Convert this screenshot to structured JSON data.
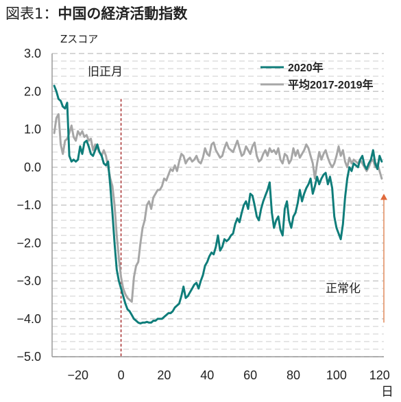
{
  "header": {
    "title_lead": "図表1：",
    "title_main": "中国の経済活動指数"
  },
  "chart_data": {
    "type": "line",
    "title": "図表1：中国の経済活動指数",
    "ylabel": "Zスコア",
    "xlabel": "日",
    "xlim": [
      -32,
      122
    ],
    "ylim": [
      -5.0,
      3.0
    ],
    "x_ticks": [
      -20,
      0,
      20,
      40,
      60,
      80,
      100,
      120
    ],
    "y_ticks": [
      3.0,
      2.0,
      1.0,
      0.0,
      -1.0,
      -2.0,
      -3.0,
      -4.0,
      -5.0
    ],
    "y_tick_labels": [
      "3.0",
      "2.0",
      "1.0",
      "0.0",
      "−1.0",
      "−2.0",
      "−3.0",
      "−4.0",
      "−5.0"
    ],
    "x_tick_labels": [
      "−20",
      "0",
      "20",
      "40",
      "60",
      "80",
      "100",
      "120"
    ],
    "grid": "horizontal-dashed",
    "legend_position": "top-right",
    "annotations": {
      "spring_festival": "旧正月",
      "normalization": "正常化"
    },
    "marker_x": 0,
    "arrow": {
      "x": 122,
      "y_from": -4.1,
      "y_to": -0.7
    },
    "series": [
      {
        "name": "2020年",
        "color": "#0f7d7a",
        "points": [
          [
            -31,
            2.15
          ],
          [
            -30,
            2.0
          ],
          [
            -29,
            1.8
          ],
          [
            -28,
            1.75
          ],
          [
            -27,
            1.6
          ],
          [
            -26,
            1.55
          ],
          [
            -25,
            1.7
          ],
          [
            -24,
            0.3
          ],
          [
            -23,
            0.15
          ],
          [
            -22,
            0.2
          ],
          [
            -21,
            0.15
          ],
          [
            -20,
            0.2
          ],
          [
            -19,
            0.55
          ],
          [
            -18,
            0.35
          ],
          [
            -17,
            0.65
          ],
          [
            -16,
            0.7
          ],
          [
            -15,
            0.55
          ],
          [
            -14,
            0.35
          ],
          [
            -13,
            0.3
          ],
          [
            -12,
            0.45
          ],
          [
            -11,
            0.6
          ],
          [
            -10,
            0.4
          ],
          [
            -9,
            0.3
          ],
          [
            -8,
            0.1
          ],
          [
            -7,
            0.05
          ],
          [
            -6,
            0.15
          ],
          [
            -5,
            -0.5
          ],
          [
            -4,
            -1.2
          ],
          [
            -3,
            -2.0
          ],
          [
            -2,
            -2.7
          ],
          [
            -1,
            -3.0
          ],
          [
            0,
            -3.2
          ],
          [
            1,
            -3.4
          ],
          [
            2,
            -3.6
          ],
          [
            3,
            -3.75
          ],
          [
            4,
            -3.8
          ],
          [
            5,
            -3.9
          ],
          [
            6,
            -4.0
          ],
          [
            7,
            -4.05
          ],
          [
            8,
            -4.1
          ],
          [
            9,
            -4.12
          ],
          [
            10,
            -4.1
          ],
          [
            11,
            -4.1
          ],
          [
            12,
            -4.08
          ],
          [
            13,
            -4.1
          ],
          [
            14,
            -4.1
          ],
          [
            15,
            -4.05
          ],
          [
            16,
            -4.05
          ],
          [
            17,
            -4.0
          ],
          [
            18,
            -4.0
          ],
          [
            19,
            -4.0
          ],
          [
            20,
            -3.95
          ],
          [
            21,
            -3.9
          ],
          [
            22,
            -3.85
          ],
          [
            23,
            -3.85
          ],
          [
            24,
            -3.8
          ],
          [
            25,
            -3.7
          ],
          [
            26,
            -3.65
          ],
          [
            27,
            -3.6
          ],
          [
            28,
            -3.4
          ],
          [
            29,
            -3.15
          ],
          [
            30,
            -3.45
          ],
          [
            31,
            -3.4
          ],
          [
            32,
            -3.3
          ],
          [
            33,
            -3.2
          ],
          [
            34,
            -3.1
          ],
          [
            35,
            -3.05
          ],
          [
            36,
            -3.2
          ],
          [
            37,
            -3.0
          ],
          [
            38,
            -2.85
          ],
          [
            39,
            -2.6
          ],
          [
            40,
            -2.5
          ],
          [
            41,
            -2.35
          ],
          [
            42,
            -2.25
          ],
          [
            43,
            -2.3
          ],
          [
            44,
            -2.1
          ],
          [
            45,
            -1.8
          ],
          [
            46,
            -2.2
          ],
          [
            47,
            -2.1
          ],
          [
            48,
            -1.9
          ],
          [
            49,
            -1.95
          ],
          [
            50,
            -1.9
          ],
          [
            51,
            -1.8
          ],
          [
            52,
            -1.75
          ],
          [
            53,
            -1.5
          ],
          [
            54,
            -1.35
          ],
          [
            55,
            -1.45
          ],
          [
            56,
            -1.2
          ],
          [
            57,
            -1.0
          ],
          [
            58,
            -0.9
          ],
          [
            59,
            -1.1
          ],
          [
            60,
            -0.7
          ],
          [
            61,
            -0.75
          ],
          [
            62,
            -1.0
          ],
          [
            63,
            -1.3
          ],
          [
            64,
            -1.4
          ],
          [
            65,
            -1.1
          ],
          [
            66,
            -0.9
          ],
          [
            67,
            -0.75
          ],
          [
            68,
            -0.6
          ],
          [
            69,
            -0.4
          ],
          [
            70,
            -1.2
          ],
          [
            71,
            -1.6
          ],
          [
            72,
            -1.4
          ],
          [
            73,
            -1.3
          ],
          [
            74,
            -1.65
          ],
          [
            75,
            -1.8
          ],
          [
            76,
            -1.1
          ],
          [
            77,
            -0.9
          ],
          [
            78,
            -1.4
          ],
          [
            79,
            -1.6
          ],
          [
            80,
            -1.3
          ],
          [
            81,
            -1.2
          ],
          [
            82,
            -0.95
          ],
          [
            83,
            -0.6
          ],
          [
            84,
            -0.9
          ],
          [
            85,
            -0.7
          ],
          [
            86,
            -0.55
          ],
          [
            87,
            -0.45
          ],
          [
            88,
            -0.3
          ],
          [
            89,
            -0.7
          ],
          [
            90,
            -0.5
          ],
          [
            91,
            -0.25
          ],
          [
            92,
            -0.45
          ],
          [
            93,
            -0.3
          ],
          [
            94,
            -0.2
          ],
          [
            95,
            -0.15
          ],
          [
            96,
            -0.45
          ],
          [
            97,
            -0.25
          ],
          [
            98,
            -0.55
          ],
          [
            99,
            -1.3
          ],
          [
            100,
            -1.6
          ],
          [
            101,
            -1.75
          ],
          [
            102,
            -1.9
          ],
          [
            103,
            -1.5
          ],
          [
            104,
            -0.8
          ],
          [
            105,
            -0.3
          ],
          [
            106,
            0.0
          ],
          [
            107,
            -0.1
          ],
          [
            108,
            0.1
          ],
          [
            109,
            0.05
          ],
          [
            110,
            0.0
          ],
          [
            111,
            0.2
          ],
          [
            112,
            0.3
          ],
          [
            113,
            0.05
          ],
          [
            114,
            -0.05
          ],
          [
            115,
            0.1
          ],
          [
            116,
            0.2
          ],
          [
            117,
            0.45
          ],
          [
            118,
            0.1
          ],
          [
            119,
            -0.05
          ],
          [
            120,
            0.3
          ],
          [
            121,
            0.15
          ]
        ]
      },
      {
        "name": "平均2017-2019年",
        "color": "#a6a6a6",
        "points": [
          [
            -31,
            0.9
          ],
          [
            -30,
            1.3
          ],
          [
            -29,
            1.4
          ],
          [
            -28,
            0.6
          ],
          [
            -27,
            0.35
          ],
          [
            -26,
            0.7
          ],
          [
            -25,
            0.75
          ],
          [
            -24,
            0.9
          ],
          [
            -23,
            1.1
          ],
          [
            -22,
            0.8
          ],
          [
            -21,
            0.7
          ],
          [
            -20,
            0.95
          ],
          [
            -19,
            0.85
          ],
          [
            -18,
            0.95
          ],
          [
            -17,
            0.8
          ],
          [
            -16,
            0.85
          ],
          [
            -15,
            0.7
          ],
          [
            -14,
            0.75
          ],
          [
            -13,
            0.45
          ],
          [
            -12,
            0.6
          ],
          [
            -11,
            0.5
          ],
          [
            -10,
            0.4
          ],
          [
            -9,
            0.3
          ],
          [
            -8,
            0.45
          ],
          [
            -7,
            0.3
          ],
          [
            -6,
            0.0
          ],
          [
            -5,
            -0.3
          ],
          [
            -4,
            -0.5
          ],
          [
            -3,
            -1.0
          ],
          [
            -2,
            -1.8
          ],
          [
            -1,
            -2.4
          ],
          [
            0,
            -2.9
          ],
          [
            1,
            -3.2
          ],
          [
            2,
            -3.35
          ],
          [
            3,
            -3.45
          ],
          [
            4,
            -3.5
          ],
          [
            5,
            -3.55
          ],
          [
            6,
            -2.9
          ],
          [
            7,
            -2.6
          ],
          [
            8,
            -2.5
          ],
          [
            9,
            -2.0
          ],
          [
            10,
            -1.6
          ],
          [
            11,
            -1.4
          ],
          [
            12,
            -1.0
          ],
          [
            13,
            -0.9
          ],
          [
            14,
            -1.1
          ],
          [
            15,
            -0.8
          ],
          [
            16,
            -0.7
          ],
          [
            17,
            -0.6
          ],
          [
            18,
            -0.6
          ],
          [
            19,
            -0.5
          ],
          [
            20,
            -0.3
          ],
          [
            21,
            -0.35
          ],
          [
            22,
            -0.2
          ],
          [
            23,
            -0.05
          ],
          [
            24,
            -0.1
          ],
          [
            25,
            0.05
          ],
          [
            26,
            -0.1
          ],
          [
            27,
            0.15
          ],
          [
            28,
            0.35
          ],
          [
            29,
            0.3
          ],
          [
            30,
            0.1
          ],
          [
            31,
            0.2
          ],
          [
            32,
            0.25
          ],
          [
            33,
            0.15
          ],
          [
            34,
            0.2
          ],
          [
            35,
            0.3
          ],
          [
            36,
            0.15
          ],
          [
            37,
            0.1
          ],
          [
            38,
            0.25
          ],
          [
            39,
            0.5
          ],
          [
            40,
            0.35
          ],
          [
            41,
            0.3
          ],
          [
            42,
            0.6
          ],
          [
            43,
            0.65
          ],
          [
            44,
            0.45
          ],
          [
            45,
            0.35
          ],
          [
            46,
            0.25
          ],
          [
            47,
            0.3
          ],
          [
            48,
            0.5
          ],
          [
            49,
            0.65
          ],
          [
            50,
            0.5
          ],
          [
            51,
            0.45
          ],
          [
            52,
            0.4
          ],
          [
            53,
            0.55
          ],
          [
            54,
            0.7
          ],
          [
            55,
            0.5
          ],
          [
            56,
            0.3
          ],
          [
            57,
            0.35
          ],
          [
            58,
            0.55
          ],
          [
            59,
            0.45
          ],
          [
            60,
            0.35
          ],
          [
            61,
            0.55
          ],
          [
            62,
            0.65
          ],
          [
            63,
            0.3
          ],
          [
            64,
            0.15
          ],
          [
            65,
            0.2
          ],
          [
            66,
            0.35
          ],
          [
            67,
            0.45
          ],
          [
            68,
            0.3
          ],
          [
            69,
            0.5
          ],
          [
            70,
            0.4
          ],
          [
            71,
            0.45
          ],
          [
            72,
            0.35
          ],
          [
            73,
            0.5
          ],
          [
            74,
            0.2
          ],
          [
            75,
            0.1
          ],
          [
            76,
            0.35
          ],
          [
            77,
            0.3
          ],
          [
            78,
            0.1
          ],
          [
            79,
            0.2
          ],
          [
            80,
            0.5
          ],
          [
            81,
            0.3
          ],
          [
            82,
            0.45
          ],
          [
            83,
            0.25
          ],
          [
            84,
            0.35
          ],
          [
            85,
            0.45
          ],
          [
            86,
            0.6
          ],
          [
            87,
            0.5
          ],
          [
            88,
            0.3
          ],
          [
            89,
            0.1
          ],
          [
            90,
            -0.3
          ],
          [
            91,
            0.1
          ],
          [
            92,
            0.4
          ],
          [
            93,
            0.2
          ],
          [
            94,
            0.35
          ],
          [
            95,
            0.45
          ],
          [
            96,
            0.25
          ],
          [
            97,
            0.1
          ],
          [
            98,
            0.0
          ],
          [
            99,
            0.1
          ],
          [
            100,
            0.3
          ],
          [
            101,
            0.55
          ],
          [
            102,
            0.3
          ],
          [
            103,
            0.45
          ],
          [
            104,
            0.15
          ],
          [
            105,
            0.0
          ],
          [
            106,
            0.25
          ],
          [
            107,
            0.1
          ],
          [
            108,
            0.2
          ],
          [
            109,
            0.15
          ],
          [
            110,
            0.1
          ],
          [
            111,
            0.2
          ],
          [
            112,
            0.1
          ],
          [
            113,
            0.0
          ],
          [
            114,
            -0.1
          ],
          [
            115,
            0.0
          ],
          [
            116,
            0.15
          ],
          [
            117,
            0.2
          ],
          [
            118,
            0.0
          ],
          [
            119,
            0.1
          ],
          [
            120,
            -0.1
          ],
          [
            121,
            -0.3
          ]
        ]
      }
    ]
  }
}
